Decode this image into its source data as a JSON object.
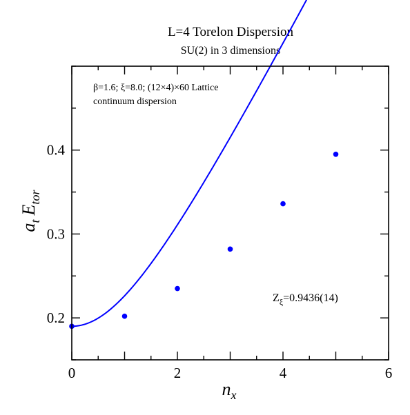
{
  "chart_data": {
    "type": "line",
    "title": "L=4 Torelon Dispersion",
    "subtitle": "SU(2) in 3 dimensions",
    "xlabel": {
      "base": "n",
      "sub": "x"
    },
    "ylabel": {
      "prefix": "a",
      "prefix_sub": "t",
      "main": "E",
      "main_sub": "tor"
    },
    "xlim": [
      0,
      6
    ],
    "ylim": [
      0.15,
      0.5
    ],
    "x_major_ticks": [
      0,
      1,
      2,
      3,
      4,
      5,
      6
    ],
    "x_tick_labels": [
      "0",
      "2",
      "4",
      "6"
    ],
    "x_tick_label_values": [
      0,
      2,
      4,
      6
    ],
    "y_major_ticks": [
      0.2,
      0.3,
      0.4
    ],
    "y_tick_labels": [
      "0.2",
      "0.3",
      "0.4"
    ],
    "y_minor_step": 0.05,
    "grid": false,
    "legend_lines": [
      "β=1.6;  ξ=8.0; (12×4)×60 Lattice",
      "continuum dispersion"
    ],
    "annotation": {
      "base": "Z",
      "sub": "ξ",
      "value": "=0.9436(14)"
    },
    "colors": {
      "series": "#0000ff",
      "axis": "#000000"
    },
    "series": [
      {
        "kind": "points",
        "x": [
          0,
          1,
          2,
          3,
          4,
          5
        ],
        "y": [
          0.19,
          0.202,
          0.235,
          0.282,
          0.336,
          0.395
        ]
      },
      {
        "kind": "curve",
        "E0": 0.19,
        "ncoef": 0.3926,
        "x_range": [
          0,
          5.5
        ]
      }
    ]
  }
}
